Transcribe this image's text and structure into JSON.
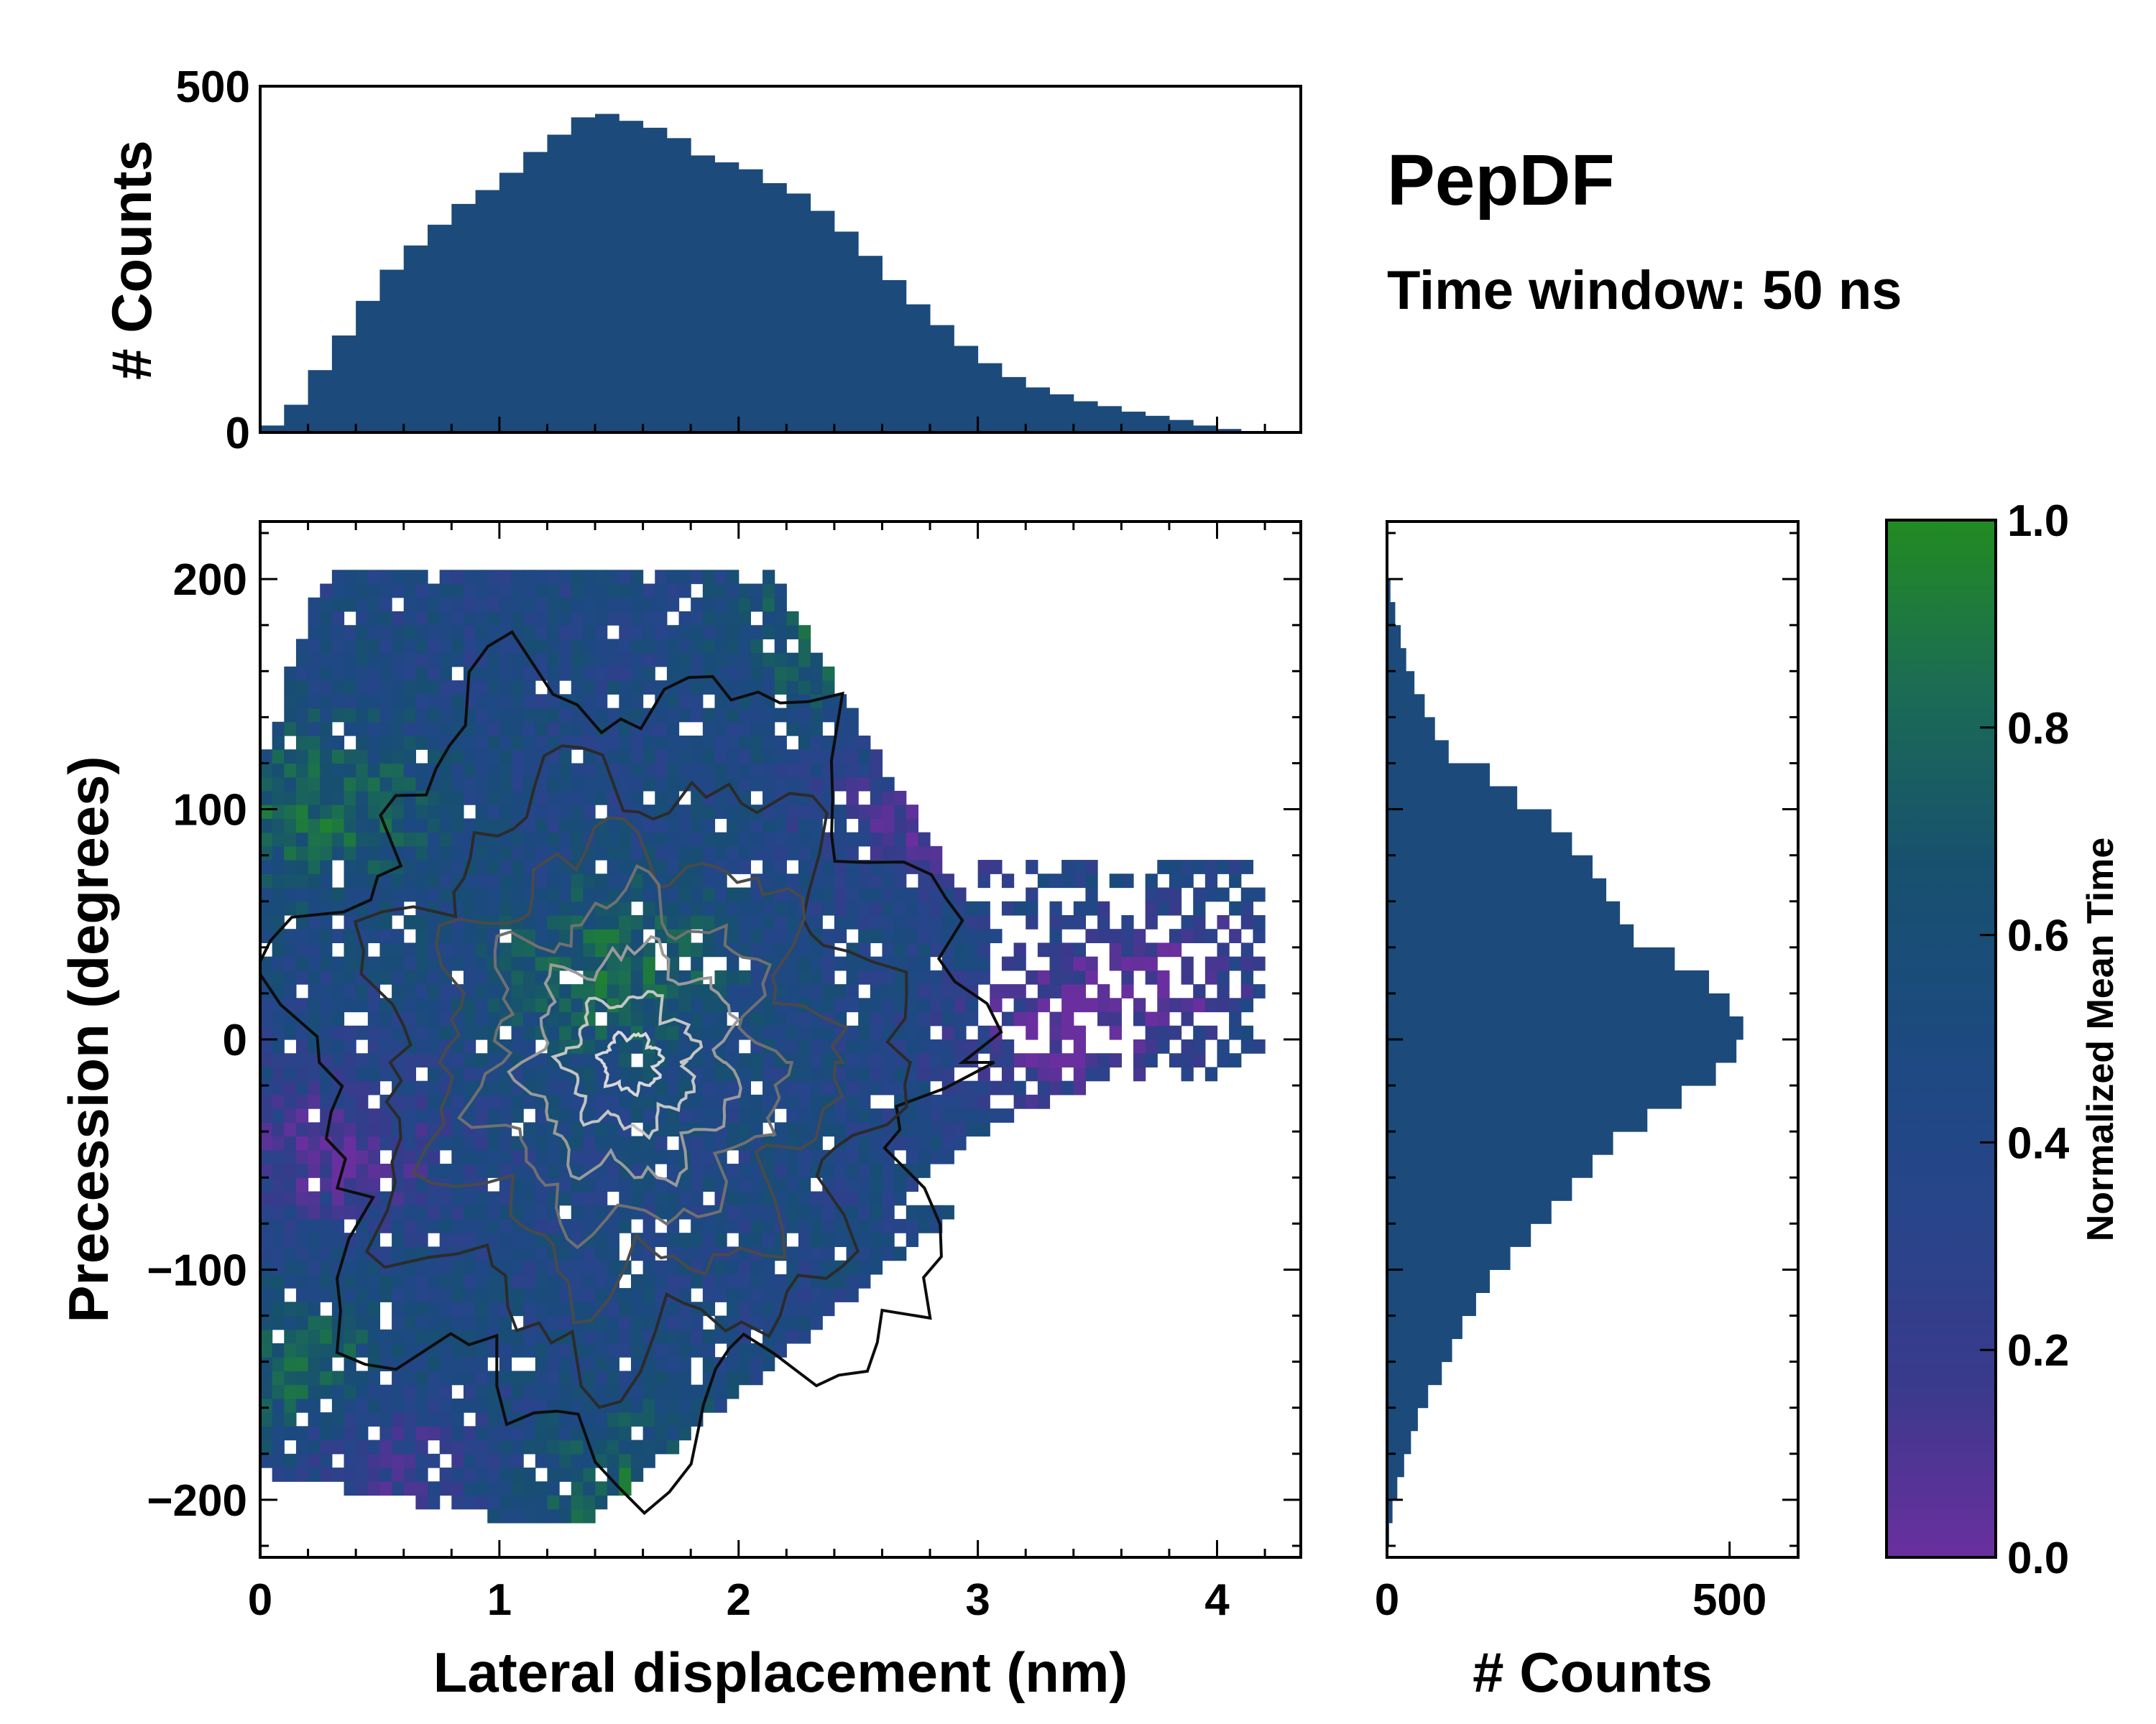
{
  "title": "PepDF",
  "subtitle": "Time window: 50 ns",
  "colors": {
    "cmap": [
      "#6a2f9e",
      "#3a3a8c",
      "#27458a",
      "#1c4a80",
      "#17506f",
      "#1b6b55",
      "#228b22"
    ],
    "contour_dark": "#1a1a1a",
    "contour_light": "#d8d8d8",
    "histogram": "#1c4a7a"
  },
  "chart_data": [
    {
      "id": "top_histogram",
      "type": "bar",
      "xlabel": "",
      "ylabel": "# Counts",
      "xlim": [
        0,
        4.35
      ],
      "ylim": [
        0,
        500
      ],
      "yticks": [
        0,
        500
      ],
      "ytick_labels": [
        "0",
        "500"
      ],
      "bin_centers": [
        0.05,
        0.15,
        0.25,
        0.35,
        0.45,
        0.55,
        0.65,
        0.75,
        0.85,
        0.95,
        1.05,
        1.15,
        1.25,
        1.35,
        1.45,
        1.55,
        1.65,
        1.75,
        1.85,
        1.95,
        2.05,
        2.15,
        2.25,
        2.35,
        2.45,
        2.55,
        2.65,
        2.75,
        2.85,
        2.95,
        3.05,
        3.15,
        3.25,
        3.35,
        3.45,
        3.55,
        3.65,
        3.75,
        3.85,
        3.95,
        4.05,
        4.15
      ],
      "counts": [
        10,
        40,
        90,
        140,
        190,
        235,
        270,
        300,
        330,
        350,
        375,
        405,
        430,
        455,
        460,
        450,
        440,
        425,
        400,
        390,
        380,
        360,
        345,
        320,
        290,
        255,
        220,
        185,
        155,
        125,
        100,
        80,
        65,
        55,
        45,
        38,
        30,
        24,
        18,
        10,
        5,
        1
      ]
    },
    {
      "id": "main_2d_histogram",
      "type": "heatmap",
      "xlabel": "Lateral displacement (nm)",
      "ylabel": "Precession (degrees)",
      "xlim": [
        0,
        4.35
      ],
      "ylim": [
        -225,
        225
      ],
      "xticks": [
        0,
        1,
        2,
        3,
        4
      ],
      "xtick_labels": [
        "0",
        "1",
        "2",
        "3",
        "4"
      ],
      "yticks": [
        200,
        100,
        0,
        -100,
        -200
      ],
      "ytick_labels": [
        "200",
        "100",
        "0",
        "−100",
        "−200"
      ],
      "color_value": "Normalized Mean Time",
      "density_center": [
        1.55,
        -10
      ],
      "green_regions": [
        [
          1.5,
          30
        ],
        [
          2.5,
          180
        ],
        [
          1.6,
          -200
        ],
        [
          0.25,
          100
        ],
        [
          0.2,
          -150
        ]
      ],
      "purple_regions": [
        [
          2.8,
          100
        ],
        [
          3.8,
          30
        ],
        [
          0.3,
          -50
        ],
        [
          0.5,
          -180
        ],
        [
          3.3,
          0
        ]
      ]
    },
    {
      "id": "right_histogram",
      "type": "bar",
      "orientation": "horizontal",
      "xlabel": "# Counts",
      "xlim": [
        0,
        600
      ],
      "ylim": [
        -225,
        225
      ],
      "xticks": [
        0,
        500
      ],
      "xtick_labels": [
        "0",
        "500"
      ],
      "bin_centers": [
        195,
        185,
        175,
        165,
        155,
        145,
        135,
        125,
        115,
        105,
        95,
        85,
        75,
        65,
        55,
        45,
        35,
        25,
        15,
        5,
        -5,
        -15,
        -25,
        -35,
        -45,
        -55,
        -65,
        -75,
        -85,
        -95,
        -105,
        -115,
        -125,
        -135,
        -145,
        -155,
        -165,
        -175,
        -185,
        -195,
        -205,
        -215
      ],
      "counts": [
        5,
        12,
        20,
        28,
        40,
        55,
        70,
        90,
        150,
        190,
        240,
        270,
        300,
        320,
        340,
        360,
        420,
        470,
        500,
        520,
        510,
        480,
        430,
        380,
        330,
        300,
        270,
        240,
        210,
        180,
        150,
        130,
        110,
        95,
        80,
        60,
        45,
        35,
        25,
        15,
        8,
        3
      ]
    },
    {
      "id": "colorbar",
      "type": "colorbar",
      "label": "Normalized Mean Time",
      "range": [
        0,
        1
      ],
      "ticks": [
        0.0,
        0.2,
        0.4,
        0.6,
        0.8,
        1.0
      ],
      "tick_labels": [
        "0.0",
        "0.2",
        "0.4",
        "0.6",
        "0.8",
        "1.0"
      ]
    }
  ]
}
